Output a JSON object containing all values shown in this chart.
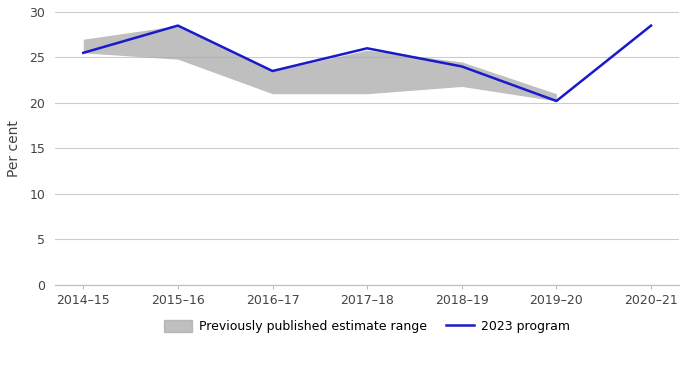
{
  "x_labels": [
    "2014–15",
    "2015–16",
    "2016–17",
    "2017–18",
    "2018–19",
    "2019–20",
    "2020–21"
  ],
  "x_values": [
    0,
    1,
    2,
    3,
    4,
    5,
    6
  ],
  "program_2023": [
    25.5,
    28.5,
    23.5,
    26.0,
    24.0,
    20.2,
    28.5
  ],
  "range_x": [
    0,
    1,
    2,
    3,
    4,
    5
  ],
  "range_upper": [
    27.0,
    28.5,
    23.5,
    25.8,
    24.5,
    21.0
  ],
  "range_lower": [
    25.5,
    24.8,
    21.0,
    21.0,
    21.8,
    20.2
  ],
  "ylabel": "Per cent",
  "ylim": [
    0,
    30
  ],
  "yticks": [
    0,
    5,
    10,
    15,
    20,
    25,
    30
  ],
  "band_color": "#aaaaaa",
  "band_alpha": 0.75,
  "line_color": "#1a1acc",
  "line_width": 1.8,
  "legend_band_label": "Previously published estimate range",
  "legend_line_label": "2023 program",
  "background_color": "#ffffff",
  "grid_color": "#cccccc",
  "tick_fontsize": 9,
  "label_fontsize": 10
}
